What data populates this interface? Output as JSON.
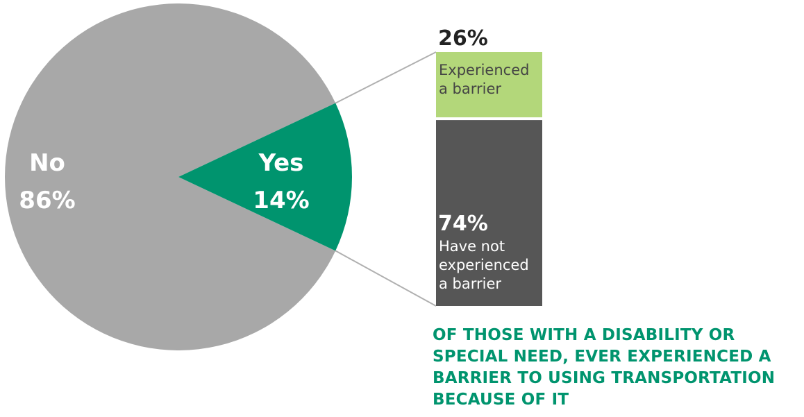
{
  "chart_data": [
    {
      "type": "pie",
      "slices": [
        {
          "label": "No",
          "value": 86,
          "value_text": "86%",
          "color": "#a8a8a8"
        },
        {
          "label": "Yes",
          "value": 14,
          "value_text": "14%",
          "color": "#00946e"
        }
      ]
    },
    {
      "type": "bar",
      "stacked": true,
      "segments": [
        {
          "value": 26,
          "value_text": "26%",
          "lines": [
            "Experienced",
            "a barrier"
          ],
          "color": "#b3d77a",
          "text_color": "#444444"
        },
        {
          "value": 74,
          "value_text": "74%",
          "lines": [
            "Have not",
            "experienced",
            "a barrier"
          ],
          "color": "#565656",
          "text_color": "#ffffff"
        }
      ]
    }
  ],
  "caption_lines": [
    "OF THOSE WITH A DISABILITY OR",
    "SPECIAL NEED, EVER EXPERIENCED A",
    "BARRIER TO USING TRANSPORTATION",
    "BECAUSE OF IT"
  ],
  "colors": {
    "caption": "#00946e",
    "connector": "#b0b0b0",
    "pct_dark": "#222222"
  }
}
